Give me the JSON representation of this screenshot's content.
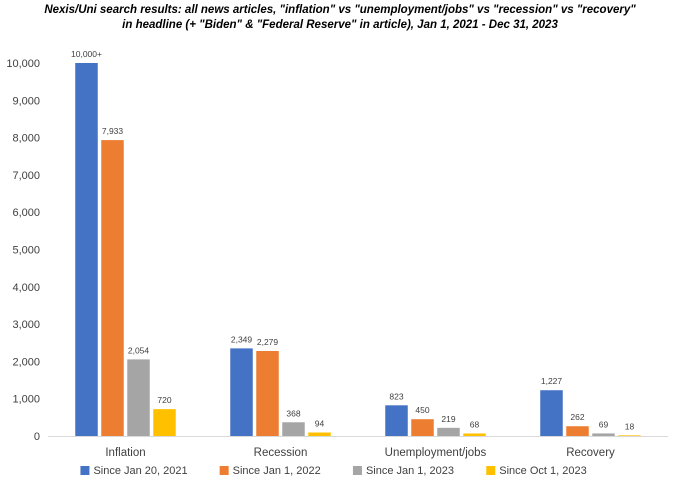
{
  "chart_data": {
    "type": "bar",
    "title_lines": [
      "Nexis/Uni search results: all news articles, \"inflation\" vs \"unemployment/jobs\" vs \"recession\" vs \"recovery\"",
      "in headline (+ \"Biden\" & \"Federal Reserve\" in article), Jan 1, 2021 - Dec 31, 2023"
    ],
    "categories": [
      "Inflation",
      "Recession",
      "Unemployment/jobs",
      "Recovery"
    ],
    "series": [
      {
        "name": "Since Jan 20, 2021",
        "color": "#4472C4",
        "values": [
          10000,
          2349,
          823,
          1227
        ],
        "labels": [
          "10,000+",
          "2,349",
          "823",
          "1,227"
        ]
      },
      {
        "name": "Since Jan 1, 2022",
        "color": "#ED7D31",
        "values": [
          7933,
          2279,
          450,
          262
        ],
        "labels": [
          "7,933",
          "2,279",
          "450",
          "262"
        ]
      },
      {
        "name": "Since Jan 1, 2023",
        "color": "#A5A5A5",
        "values": [
          2054,
          368,
          219,
          69
        ],
        "labels": [
          "2,054",
          "368",
          "219",
          "69"
        ]
      },
      {
        "name": "Since Oct 1, 2023",
        "color": "#FFC000",
        "values": [
          720,
          94,
          68,
          18
        ],
        "labels": [
          "720",
          "94",
          "68",
          "18"
        ]
      }
    ],
    "yticks": [
      "0",
      "1,000",
      "2,000",
      "3,000",
      "4,000",
      "5,000",
      "6,000",
      "7,000",
      "8,000",
      "9,000",
      "10,000"
    ],
    "ylim": [
      0,
      10000
    ],
    "grid": false,
    "legend_position": "bottom"
  }
}
